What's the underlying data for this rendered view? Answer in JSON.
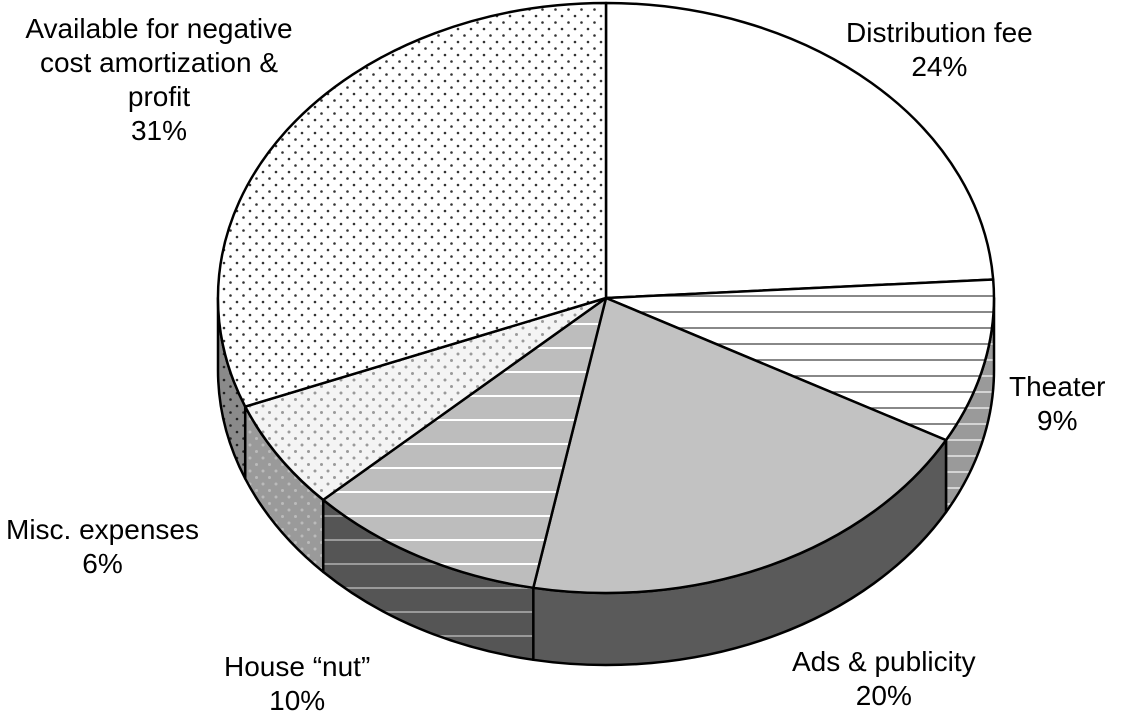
{
  "chart_data": {
    "type": "pie",
    "slices": [
      {
        "label": "Distribution fee",
        "value": 24,
        "value_label": "24%",
        "fill": "#ffffff",
        "pattern": "none"
      },
      {
        "label": "Theater",
        "value": 9,
        "value_label": "9%",
        "fill": "#ffffff",
        "pattern": "horizontal-lines"
      },
      {
        "label": "Ads & publicity",
        "value": 20,
        "value_label": "20%",
        "fill": "#c2c2c2",
        "pattern": "none"
      },
      {
        "label": "House “nut”",
        "value": 10,
        "value_label": "10%",
        "fill": "#bdbdbd",
        "pattern": "white-horizontal-lines"
      },
      {
        "label": "Misc. expenses",
        "value": 6,
        "value_label": "6%",
        "fill": "#f4f4f4",
        "pattern": "gray-dots"
      },
      {
        "label": "Available for negative cost amortization & profit",
        "label_lines": [
          "Available for negative",
          "cost amortization &",
          "profit"
        ],
        "value": 31,
        "value_label": "31%",
        "fill": "#ffffff",
        "pattern": "dots"
      }
    ],
    "style": "3d-tilted",
    "legend": "none",
    "title": ""
  }
}
